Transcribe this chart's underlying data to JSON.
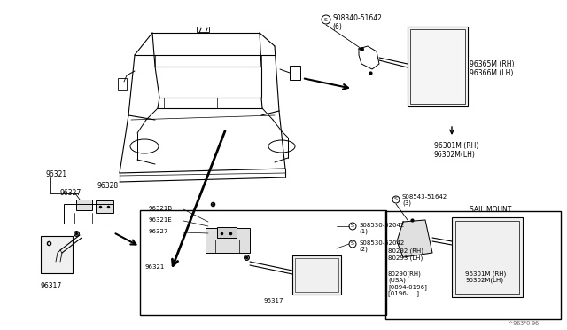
{
  "bg_color": "#ffffff",
  "fig_width": 6.4,
  "fig_height": 3.72,
  "watermark": "^963*0 96",
  "part_numbers": {
    "top_screw": "S08340-51642\n(6)",
    "mirror_rh_lh_top": "96365M (RH)\n96366M (LH)",
    "mirror_assy_top": "96301M (RH)\n96302M(LH)",
    "sail_mount_label": "SAIL MOUNT",
    "sail_screw": "S08543-51642\n(3)",
    "sail_rh_lh_1": "80292 (RH)\n80293 (LH)",
    "sail_rh_lh_2": "80290(RH)\n(USA)\n[0894-0196]\n[0196-    ]",
    "sail_mirror_rh": "96301M (RH)\n96302M(LH)",
    "left_96321": "96321",
    "left_96327": "96327",
    "left_96328": "96328",
    "left_96317": "96317",
    "box_96321b": "96321B",
    "box_96321e": "96321E",
    "box_96327": "96327",
    "box_96321": "96321",
    "box_96317": "96317",
    "box_screw1": "S08530-52042\n(1)",
    "box_screw2": "S08530-52042\n(2)"
  }
}
